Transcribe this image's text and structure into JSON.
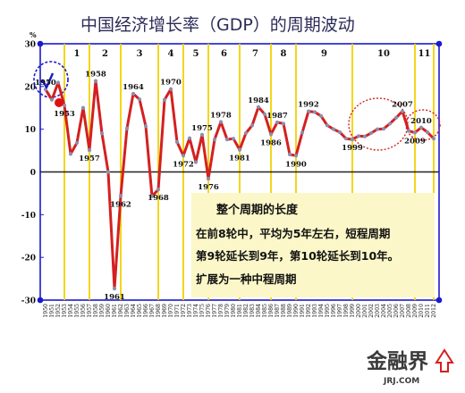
{
  "chart_data": {
    "type": "line",
    "title": "中国经济增长率（GDP）的周期波动",
    "y_unit": "%",
    "ylim": [
      -30,
      30
    ],
    "y_ticks": [
      30,
      20,
      10,
      0,
      -10,
      -20,
      -30
    ],
    "grid": false,
    "x_ticks": [
      "1950",
      "1951",
      "1952",
      "1953",
      "1954",
      "1955",
      "1956",
      "1957",
      "1958",
      "1959",
      "1960",
      "1961",
      "1962",
      "1963",
      "1964",
      "1965",
      "1966",
      "1967",
      "1968",
      "1969",
      "1970",
      "1971",
      "1972",
      "1973",
      "1974",
      "1975",
      "1976",
      "1977",
      "1978",
      "1979",
      "1980",
      "1981",
      "1982",
      "1983",
      "1984",
      "1985",
      "1986",
      "1987",
      "1988",
      "1989",
      "1990",
      "1991",
      "1992",
      "1993",
      "1994",
      "1995",
      "1996",
      "1997",
      "1998",
      "1999",
      "2000",
      "2001",
      "2002",
      "2003",
      "2004",
      "2005",
      "2006",
      "2007",
      "2008",
      "2009",
      "2010",
      "2011",
      "2012"
    ],
    "series": [
      {
        "x": [
          1950,
          1951,
          1952,
          1953,
          1954,
          1955,
          1956,
          1957,
          1958,
          1959,
          1960,
          1961,
          1962,
          1963,
          1964,
          1965,
          1966,
          1967,
          1968,
          1969,
          1970,
          1971,
          1972,
          1973,
          1974,
          1975,
          1976,
          1977,
          1978,
          1979,
          1980,
          1981,
          1982,
          1983,
          1984,
          1985,
          1986,
          1987,
          1988,
          1989,
          1990,
          1991,
          1992,
          1993,
          1994,
          1995,
          1996,
          1997,
          1998,
          1999,
          2000,
          2001,
          2002,
          2003,
          2004,
          2005,
          2006,
          2007,
          2008,
          2009,
          2010,
          2011,
          2012
        ],
        "values": [
          19.3,
          16.9,
          20.9,
          15.6,
          4.2,
          6.8,
          15.0,
          5.1,
          21.3,
          9.0,
          0.0,
          -27.3,
          -5.6,
          10.2,
          18.3,
          17.0,
          10.7,
          -5.7,
          -4.1,
          16.9,
          19.4,
          7.0,
          3.8,
          7.9,
          2.3,
          8.7,
          -1.6,
          7.6,
          11.7,
          7.6,
          7.8,
          5.2,
          9.1,
          10.9,
          15.2,
          13.5,
          8.8,
          11.6,
          11.3,
          4.1,
          3.8,
          9.2,
          14.2,
          14.0,
          13.1,
          10.9,
          10.0,
          9.3,
          7.8,
          7.6,
          8.4,
          8.3,
          9.1,
          10.0,
          10.1,
          11.3,
          12.7,
          14.2,
          9.6,
          9.2,
          10.4,
          9.3,
          7.8
        ]
      }
    ],
    "cycles": [
      {
        "label": "1",
        "start": 1953,
        "end": 1957
      },
      {
        "label": "2",
        "start": 1957,
        "end": 1962
      },
      {
        "label": "3",
        "start": 1962,
        "end": 1968
      },
      {
        "label": "4",
        "start": 1968,
        "end": 1972
      },
      {
        "label": "5",
        "start": 1972,
        "end": 1976
      },
      {
        "label": "6",
        "start": 1976,
        "end": 1981
      },
      {
        "label": "7",
        "start": 1981,
        "end": 1986
      },
      {
        "label": "8",
        "start": 1986,
        "end": 1990
      },
      {
        "label": "9",
        "start": 1990,
        "end": 1999
      },
      {
        "label": "10",
        "start": 1999,
        "end": 2009
      },
      {
        "label": "11",
        "start": 2009,
        "end": 2012
      }
    ],
    "annotations": [
      {
        "text": "1950",
        "x": 1950,
        "y": 19.3,
        "side": "above"
      },
      {
        "text": "1953",
        "x": 1953,
        "y": 15.6,
        "side": "below"
      },
      {
        "text": "1957",
        "x": 1957,
        "y": 5.1,
        "side": "below"
      },
      {
        "text": "1958",
        "x": 1958,
        "y": 21.3,
        "side": "above"
      },
      {
        "text": "1961",
        "x": 1961,
        "y": -27.3,
        "side": "below"
      },
      {
        "text": "1962",
        "x": 1962,
        "y": -5.6,
        "side": "below"
      },
      {
        "text": "1964",
        "x": 1964,
        "y": 18.3,
        "side": "above"
      },
      {
        "text": "1968",
        "x": 1968,
        "y": -4.1,
        "side": "below"
      },
      {
        "text": "1970",
        "x": 1970,
        "y": 19.4,
        "side": "above"
      },
      {
        "text": "1972",
        "x": 1972,
        "y": 3.8,
        "side": "below"
      },
      {
        "text": "1975",
        "x": 1975,
        "y": 8.7,
        "side": "above"
      },
      {
        "text": "1976",
        "x": 1976,
        "y": -1.6,
        "side": "below"
      },
      {
        "text": "1978",
        "x": 1978,
        "y": 11.7,
        "side": "above"
      },
      {
        "text": "1981",
        "x": 1981,
        "y": 5.2,
        "side": "below"
      },
      {
        "text": "1984",
        "x": 1984,
        "y": 15.2,
        "side": "above"
      },
      {
        "text": "1986",
        "x": 1986,
        "y": 8.8,
        "side": "below"
      },
      {
        "text": "1987",
        "x": 1987,
        "y": 11.6,
        "side": "above"
      },
      {
        "text": "1990",
        "x": 1990,
        "y": 3.8,
        "side": "below"
      },
      {
        "text": "1992",
        "x": 1992,
        "y": 14.2,
        "side": "above"
      },
      {
        "text": "1999",
        "x": 1999,
        "y": 7.6,
        "side": "below"
      },
      {
        "text": "2007",
        "x": 2007,
        "y": 14.2,
        "side": "above"
      },
      {
        "text": "2009",
        "x": 2009,
        "y": 9.2,
        "side": "below"
      },
      {
        "text": "2010",
        "x": 2010,
        "y": 10.4,
        "side": "above"
      }
    ],
    "note": {
      "title": "整个周期的长度",
      "lines": [
        "在前8轮中，平均为5年左右，短程周期",
        "第9轮延长到9年，第10轮延长到10年。",
        "扩展为一种中程周期"
      ]
    },
    "colors": {
      "line": "#d42020",
      "marker": "#8a8fb0",
      "cycle_line": "#f2d200",
      "blue": "#1a1acc",
      "note_bg": "#fbf7c8",
      "title": "#2b2b5a"
    }
  },
  "logo": {
    "main": "金融界",
    "sub": "JRJ.COM"
  }
}
